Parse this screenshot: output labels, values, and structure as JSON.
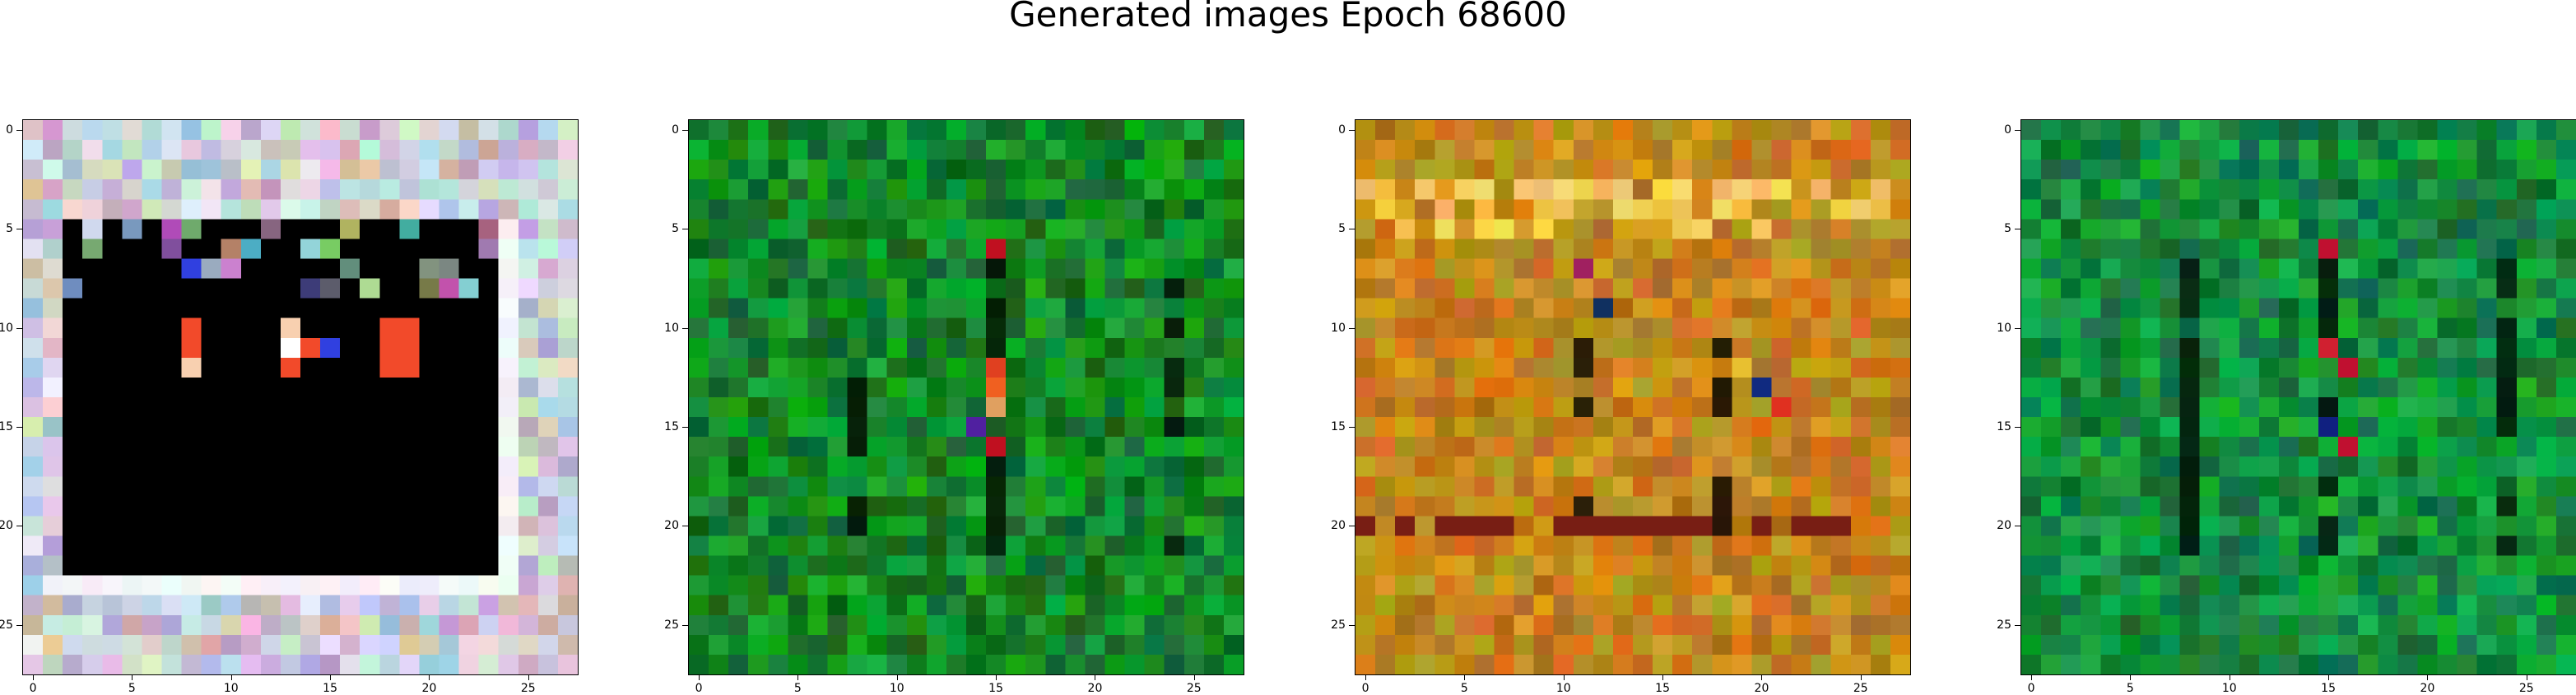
{
  "figure": {
    "title": "Generated images Epoch 68600"
  },
  "axes": {
    "grid_size": 28,
    "x_ticks": [
      "0",
      "5",
      "10",
      "15",
      "20",
      "25"
    ],
    "y_ticks": [
      "0",
      "5",
      "10",
      "15",
      "20",
      "25"
    ]
  },
  "panels": [
    {
      "name": "panel-1",
      "content": "generated-image",
      "palette": {
        "base": "#b8c7d4",
        "inner": "#000000",
        "accent": "#f24a2a"
      }
    },
    {
      "name": "panel-2",
      "content": "generated-image",
      "palette": {
        "base": "#1c8a2a",
        "accent": "#c01020"
      }
    },
    {
      "name": "panel-3",
      "content": "generated-image",
      "palette": {
        "base": "#c2861a",
        "accent": "#e8c030"
      }
    },
    {
      "name": "panel-4",
      "content": "generated-image",
      "palette": {
        "base": "#168a3a",
        "accent": "#c01030"
      }
    }
  ]
}
